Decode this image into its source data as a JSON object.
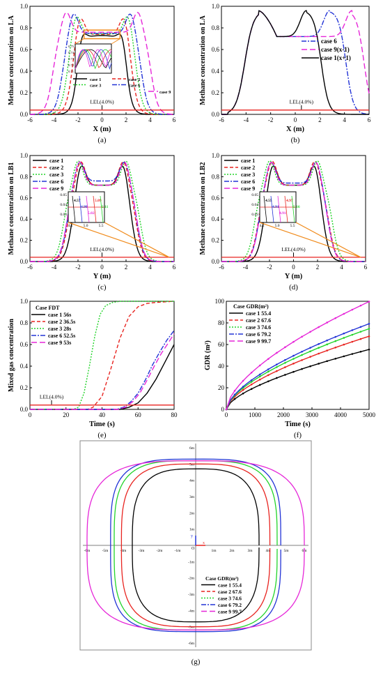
{
  "panels": [
    {
      "id": "a",
      "caption": "(a)",
      "ylabel": "Methane concentration on LA",
      "xlabel": "X (m)"
    },
    {
      "id": "b",
      "caption": "(b)",
      "ylabel": "Methane concentration on LA",
      "xlabel": "X (m)"
    },
    {
      "id": "c",
      "caption": "(c)",
      "ylabel": "Methane concentration on LB1",
      "xlabel": "Y (m)"
    },
    {
      "id": "d",
      "caption": "(d)",
      "ylabel": "Methane concentration on LB2",
      "xlabel": "Y (m)"
    },
    {
      "id": "e",
      "caption": "(e)",
      "ylabel": "Mixed gas concentration",
      "xlabel": "Time (s)"
    },
    {
      "id": "f",
      "caption": "(f)",
      "ylabel": "GDR (m²)",
      "xlabel": "Time (s)"
    },
    {
      "id": "g",
      "caption": "(g)"
    }
  ],
  "lel_label": "LEL(4.0%)",
  "colors": {
    "case1": "#000000",
    "case2": "#e8231f",
    "case3": "#22d42a",
    "case6": "#2233d6",
    "case9": "#e626d8",
    "lel": "#e8231f",
    "callout": "#f08a1a"
  },
  "chart_data": [
    {
      "id": "a",
      "type": "line",
      "xlim": [
        -6,
        6
      ],
      "ylim": [
        0,
        1.0
      ],
      "xticks": [
        "-6",
        "-4",
        "-2",
        "0",
        "2",
        "4",
        "6"
      ],
      "yticks": [
        "0.0",
        "0.2",
        "0.4",
        "0.6",
        "0.8",
        "1.0"
      ],
      "lel": 0.04,
      "series": [
        {
          "name": "case 1",
          "half_width": 2.0,
          "peak_offset": 1.9,
          "peak": 0.96,
          "valley": 0.73
        },
        {
          "name": "case 2",
          "half_width": 2.5,
          "peak_offset": 1.9,
          "peak": 0.96,
          "valley": 0.74
        },
        {
          "name": "case 3",
          "half_width": 2.9,
          "peak_offset": 2.2,
          "peak": 0.96,
          "valley": 0.745
        },
        {
          "name": "case 6",
          "half_width": 3.3,
          "peak_offset": 2.4,
          "peak": 0.96,
          "valley": 0.75
        },
        {
          "name": "case 9",
          "half_width": 4.1,
          "peak_offset": 3.0,
          "peak": 0.96,
          "valley": 0.76
        }
      ],
      "inset_yticks": [
        "0.75",
        "0.74",
        "0.73",
        "0.72",
        "0.71"
      ]
    },
    {
      "id": "b",
      "type": "line",
      "xlim": [
        -6,
        6
      ],
      "ylim": [
        0,
        1.0
      ],
      "xticks": [
        "-6",
        "-4",
        "-2",
        "0",
        "2",
        "4",
        "6"
      ],
      "yticks": [
        "0.0",
        "0.2",
        "0.4",
        "0.6",
        "0.8",
        "1.0"
      ],
      "lel": 0.04,
      "series": [
        {
          "name": "case 6",
          "note": "peaks at x≈-3 and x≈2.8, falls to 0 near x≈5"
        },
        {
          "name": "case 9(x-1)",
          "note": "peaks at x≈-3 and x≈4.6, falls to 0 near x≈6"
        },
        {
          "name": "case 1(x+1)",
          "note": "peaks at x≈-3 and x≈0.9, falls to 0 near x≈3"
        }
      ]
    },
    {
      "id": "c",
      "type": "line",
      "xlim": [
        -6,
        6
      ],
      "ylim": [
        0,
        1.0
      ],
      "xticks": [
        "-6",
        "-4",
        "-2",
        "0",
        "2",
        "4",
        "6"
      ],
      "yticks": [
        "0.0",
        "0.2",
        "0.4",
        "0.6",
        "0.8",
        "1.0"
      ],
      "lel": 0.04,
      "series": [
        {
          "name": "case 1",
          "half_width": 2.5,
          "peak_offset": 1.8,
          "valley": 0.72
        },
        {
          "name": "case 2",
          "half_width": 2.85,
          "peak_offset": 1.8,
          "valley": 0.72
        },
        {
          "name": "case 3",
          "half_width": 3.2,
          "peak_offset": 2.0,
          "valley": 0.72
        },
        {
          "name": "case 6",
          "half_width": 2.9,
          "peak_offset": 1.9,
          "valley": 0.76
        },
        {
          "name": "case 9",
          "half_width": 2.95,
          "peak_offset": 1.9,
          "valley": 0.72
        }
      ],
      "inset_labels": [
        "4.57",
        "4.99",
        "5.02",
        "5.09",
        "5.11"
      ],
      "inset_xticks": [
        "4.5",
        "5.0",
        "5.5"
      ],
      "inset_yticks": [
        "0.05",
        "0.04",
        "0.03"
      ]
    },
    {
      "id": "d",
      "type": "line",
      "xlim": [
        -6,
        6
      ],
      "ylim": [
        0,
        1.0
      ],
      "xticks": [
        "-6",
        "-4",
        "-2",
        "0",
        "2",
        "4",
        "6"
      ],
      "yticks": [
        "0.0",
        "0.2",
        "0.4",
        "0.6",
        "0.8",
        "1.0"
      ],
      "lel": 0.04,
      "series": [
        {
          "name": "case 1",
          "half_width": 2.5,
          "peak_offset": 1.8,
          "valley": 0.72
        },
        {
          "name": "case 2",
          "half_width": 2.95,
          "peak_offset": 1.8,
          "valley": 0.72
        },
        {
          "name": "case 3",
          "half_width": 3.25,
          "peak_offset": 2.0,
          "valley": 0.72
        },
        {
          "name": "case 6",
          "half_width": 2.9,
          "peak_offset": 1.9,
          "valley": 0.74
        },
        {
          "name": "case 9",
          "half_width": 2.9,
          "peak_offset": 1.9,
          "valley": 0.72
        }
      ],
      "inset_labels": [
        "4.55",
        "4.91",
        "4.91",
        "4.97",
        "5.16"
      ],
      "inset_xticks": [
        "4.5",
        "5.0",
        "5.5"
      ],
      "inset_yticks": [
        "0.05",
        "0.04",
        "0.03"
      ]
    },
    {
      "id": "e",
      "type": "line",
      "xlim": [
        0,
        80
      ],
      "ylim": [
        0,
        1.0
      ],
      "xticks": [
        "0",
        "20",
        "40",
        "60",
        "80"
      ],
      "yticks": [
        "0.0",
        "0.2",
        "0.4",
        "0.6",
        "0.8",
        "1.0"
      ],
      "lel": 0.04,
      "legend_header": [
        "Case",
        "FDT"
      ],
      "series": [
        {
          "name": "case 1",
          "fdt": "56s",
          "x": [
            0,
            50,
            55,
            60,
            65,
            70,
            75,
            80
          ],
          "y": [
            0,
            0,
            0.02,
            0.06,
            0.15,
            0.28,
            0.44,
            0.6
          ]
        },
        {
          "name": "case 2",
          "fdt": "36.5s",
          "x": [
            0,
            32,
            35,
            40,
            45,
            50,
            55,
            60,
            65,
            70,
            80
          ],
          "y": [
            0,
            0,
            0.02,
            0.12,
            0.38,
            0.66,
            0.86,
            0.95,
            0.98,
            0.99,
            1.0
          ]
        },
        {
          "name": "case 3",
          "fdt": "28s",
          "x": [
            0,
            24,
            27,
            30,
            33,
            36,
            39,
            42,
            46,
            50,
            60,
            80
          ],
          "y": [
            0,
            0,
            0.02,
            0.15,
            0.4,
            0.68,
            0.88,
            0.96,
            0.99,
            1.0,
            1.0,
            1.0
          ]
        },
        {
          "name": "case 6",
          "fdt": "52.5s",
          "x": [
            0,
            48,
            52,
            56,
            60,
            64,
            68,
            72,
            76,
            80
          ],
          "y": [
            0,
            0,
            0.02,
            0.07,
            0.15,
            0.27,
            0.41,
            0.53,
            0.64,
            0.73
          ]
        },
        {
          "name": "case 9",
          "fdt": "53s",
          "x": [
            0,
            49,
            53,
            57,
            61,
            65,
            69,
            73,
            77,
            80
          ],
          "y": [
            0,
            0,
            0.02,
            0.07,
            0.15,
            0.27,
            0.4,
            0.52,
            0.62,
            0.7
          ]
        }
      ]
    },
    {
      "id": "f",
      "type": "line",
      "xlim": [
        0,
        5100
      ],
      "ylim": [
        0,
        100
      ],
      "xticks": [
        "0",
        "1000",
        "2000",
        "3000",
        "4000",
        "5000"
      ],
      "yticks": [
        "0",
        "20",
        "40",
        "60",
        "80",
        "100"
      ],
      "legend_header": [
        "Case",
        "GDR(m²)"
      ],
      "series": [
        {
          "name": "case 1",
          "gdr": "55.4",
          "final": 55.4
        },
        {
          "name": "case 2",
          "gdr": "67.6",
          "final": 67.6
        },
        {
          "name": "case 3",
          "gdr": "74.6",
          "final": 74.6
        },
        {
          "name": "case 6",
          "gdr": "79.2",
          "final": 79.2
        },
        {
          "name": "case 9",
          "gdr": "99.7",
          "final": 99.7
        }
      ]
    },
    {
      "id": "g",
      "type": "scatter",
      "xlim": [
        -6,
        6
      ],
      "ylim": [
        -6,
        6
      ],
      "xticks": [
        "-6m",
        "-5m",
        "-4m",
        "-3m",
        "-2m",
        "-1m",
        "1m",
        "2m",
        "3m",
        "4m",
        "5m",
        "6m"
      ],
      "yticks": [
        "6m",
        "5m",
        "4m",
        "3m",
        "2m",
        "1m",
        "-1m",
        "-2m",
        "-3m",
        "-4m",
        "-5m",
        "-6m"
      ],
      "origin_label": "O",
      "x_axis_label": "x",
      "y_axis_label": "y",
      "legend_header": [
        "Case",
        "GDR(m²)"
      ],
      "series": [
        {
          "name": "case 1",
          "gdr": "55.4",
          "a": 3.5,
          "b": 4.7,
          "n": 3.2
        },
        {
          "name": "case 2",
          "gdr": "67.6",
          "a": 4.1,
          "b": 5.0,
          "n": 3.4
        },
        {
          "name": "case 3",
          "gdr": "74.6",
          "a": 4.5,
          "b": 5.2,
          "n": 3.6
        },
        {
          "name": "case 6",
          "gdr": "79.2",
          "a": 4.7,
          "b": 5.3,
          "n": 3.8
        },
        {
          "name": "case 9",
          "gdr": "99.7",
          "a": 6.0,
          "b": 5.2,
          "n": 3.3
        }
      ]
    }
  ]
}
